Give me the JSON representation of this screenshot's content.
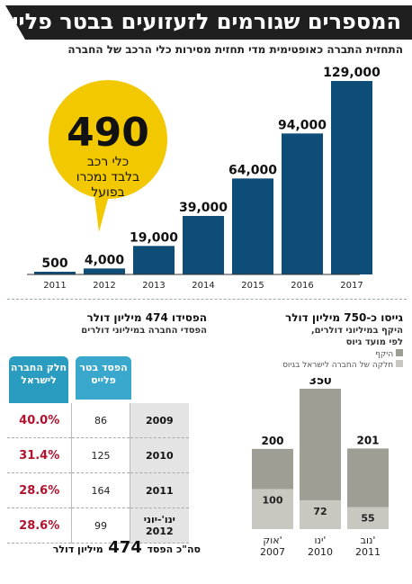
{
  "title": "המספרים שגורמים לזעזועים בבטר פלייס",
  "subtitle": "התחזית התברה כאופטימית מדי תחזית מסירות כלי הרכב של החברה",
  "callout": {
    "number": "490",
    "line1": "כלי רכב",
    "line2": "בלבד נמכרו",
    "line3": "בפועל"
  },
  "loss_section": {
    "title": "הפסידו 474 מיליון דולר",
    "subtitle": "הפסדי החברה במיליוני דולרים",
    "col_loss": "הפסד בטר פלייס",
    "col_share": "חלק החברה לישראל",
    "total_prefix": "סה\"כ הפסד",
    "total_value": "474",
    "total_suffix": "מיליון דולר",
    "rows": [
      {
        "period": "2009",
        "loss": "86",
        "share": "40.0%"
      },
      {
        "period": "2010",
        "loss": "125",
        "share": "31.4%"
      },
      {
        "period": "2011",
        "loss": "164",
        "share": "28.6%"
      },
      {
        "period": "ינו'-יוני 2012",
        "loss": "99",
        "share": "28.6%"
      }
    ]
  },
  "raise_section": {
    "title": "גייסו כ-750 מיליון דולר",
    "subtitle1": "היקף במיליוני דולרים,",
    "subtitle2": "לפי מועד גיוס",
    "legend": [
      "היקף",
      "חלקה של החברה לישראל בגיוס"
    ]
  },
  "chart_data": [
    {
      "type": "bar",
      "categories": [
        "2011",
        "2012",
        "2013",
        "2014",
        "2015",
        "2016",
        "2017"
      ],
      "values": [
        500,
        4000,
        19000,
        39000,
        64000,
        94000,
        129000
      ],
      "value_labels": [
        "500",
        "4,000",
        "19,000",
        "39,000",
        "64,000",
        "94,000",
        "129,000"
      ],
      "ylim": [
        0,
        129000
      ],
      "color": "#0d4d78"
    },
    {
      "type": "bar",
      "categories": [
        "אוק' 2007",
        "ינו' 2010",
        "נוב' 2011"
      ],
      "series": [
        {
          "name": "היקף",
          "values": [
            200,
            350,
            201
          ],
          "color": "#9e9e94"
        },
        {
          "name": "חלקה של החברה לישראל בגיוס",
          "values": [
            100,
            72,
            55
          ],
          "color": "#c8c8c0"
        }
      ],
      "ylim": [
        0,
        350
      ]
    }
  ],
  "colors": {
    "accent_blue": "#0d4d78",
    "callout_yellow": "#f2c800",
    "teal": "#2a9cc0",
    "red": "#b3122e"
  }
}
